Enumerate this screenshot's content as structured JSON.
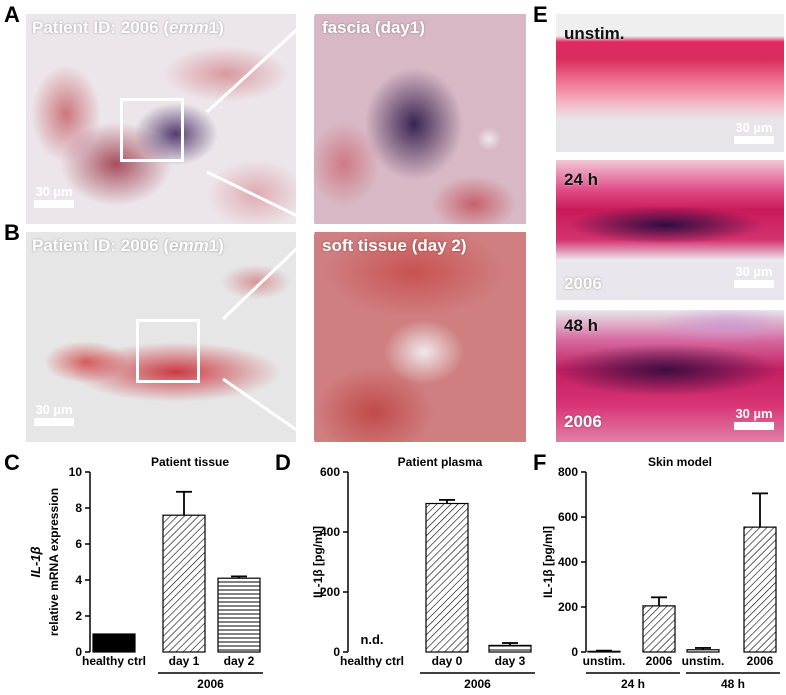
{
  "panels": {
    "A": "A",
    "B": "B",
    "C": "C",
    "D": "D",
    "E": "E",
    "F": "F"
  },
  "micrographs": {
    "a_left_label": "Patient ID: 2006 (emm1)",
    "a_left_prefix": "Patient ID: 2006 (",
    "a_left_italic": "emm",
    "a_left_suffix": "1)",
    "a_right_label": "fascia (day1)",
    "b_left_prefix": "Patient ID: 2006 (",
    "b_left_italic": "emm",
    "b_left_suffix": "1)",
    "b_right_label": "soft tissue (day 2)",
    "scale_label": "30 µm",
    "e_top_label": "unstim.",
    "e_mid_label": "24 h",
    "e_mid_bottom": "2006",
    "e_bot_label": "48 h",
    "e_bot_bottom": "2006"
  },
  "chart_data": [
    {
      "panel": "C",
      "type": "bar",
      "title": "Patient tissue",
      "ylabel_italic": "IL-1β",
      "ylabel": "relative mRNA expression",
      "categories": [
        "healthy ctrl",
        "day 1",
        "day 2"
      ],
      "values": [
        1.0,
        7.6,
        4.1
      ],
      "errors": [
        0,
        1.3,
        0.1
      ],
      "fills": [
        "solid-black",
        "diagonal-hatch",
        "horizontal-hatch"
      ],
      "ylim": [
        0,
        10
      ],
      "yticks": [
        "0",
        "2",
        "4",
        "6",
        "8",
        "10"
      ],
      "group_label": "2006",
      "group_indices": [
        1,
        2
      ]
    },
    {
      "panel": "D",
      "type": "bar",
      "title": "Patient plasma",
      "ylabel": "IL-1β [pg/ml]",
      "categories": [
        "healthy ctrl",
        "day 0",
        "day 3"
      ],
      "values": [
        0,
        495,
        22
      ],
      "errors": [
        0,
        12,
        8
      ],
      "fills": [
        "none",
        "diagonal-hatch",
        "horizontal-hatch"
      ],
      "annotations": [
        "n.d."
      ],
      "ylim": [
        0,
        600
      ],
      "yticks": [
        "0",
        "200",
        "400",
        "600"
      ],
      "group_label": "2006",
      "group_indices": [
        1,
        2
      ]
    },
    {
      "panel": "F",
      "type": "bar",
      "title": "Skin model",
      "ylabel": "IL-1β [pg/ml]",
      "categories": [
        "unstim.",
        "2006",
        "unstim.",
        "2006"
      ],
      "values": [
        3,
        205,
        10,
        555
      ],
      "errors": [
        3,
        38,
        8,
        150
      ],
      "fills": [
        "white",
        "diagonal-hatch",
        "white",
        "diagonal-hatch"
      ],
      "ylim": [
        0,
        800
      ],
      "yticks": [
        "0",
        "200",
        "400",
        "600",
        "800"
      ],
      "groups": [
        {
          "label": "24 h",
          "indices": [
            0,
            1
          ]
        },
        {
          "label": "48 h",
          "indices": [
            2,
            3
          ]
        }
      ]
    }
  ]
}
